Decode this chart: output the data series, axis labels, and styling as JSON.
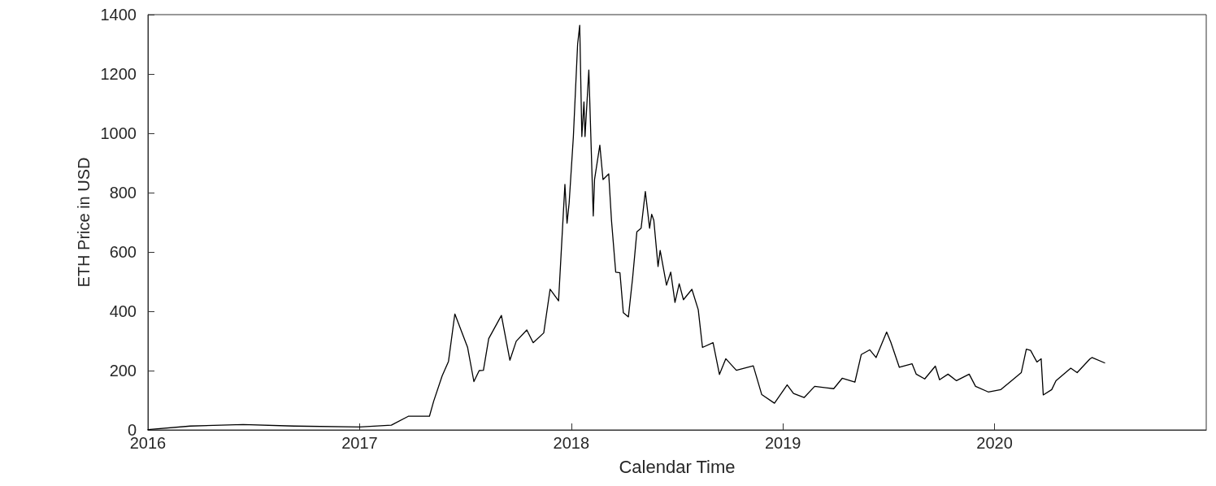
{
  "chart_data": {
    "type": "line",
    "xlabel": "Calendar Time",
    "ylabel": "ETH Price in USD",
    "xlim": [
      2016,
      2021
    ],
    "xticks": [
      2016,
      2017,
      2018,
      2019,
      2020
    ],
    "ylim": [
      0,
      1400
    ],
    "yticks": [
      0,
      200,
      400,
      600,
      800,
      1000,
      1200,
      1400
    ],
    "grid": false,
    "marker": "none",
    "line_style": "solid",
    "series": [
      {
        "color": "#000000",
        "x": [
          2016.0,
          2016.2,
          2016.45,
          2016.69,
          2017.0,
          2017.15,
          2017.23,
          2017.25,
          2017.33,
          2017.35,
          2017.39,
          2017.42,
          2017.45,
          2017.51,
          2017.54,
          2017.565,
          2017.585,
          2017.61,
          2017.67,
          2017.71,
          2017.74,
          2017.79,
          2017.82,
          2017.87,
          2017.9,
          2017.94,
          2017.96,
          2017.97,
          2017.98,
          2017.99,
          2018.01,
          2018.03,
          2018.04,
          2018.05,
          2018.06,
          2018.065,
          2018.083,
          2018.104,
          2018.11,
          2018.135,
          2018.15,
          2018.177,
          2018.19,
          2018.21,
          2018.23,
          2018.246,
          2018.27,
          2018.29,
          2018.31,
          2018.33,
          2018.35,
          2018.37,
          2018.38,
          2018.39,
          2018.41,
          2018.42,
          2018.45,
          2018.47,
          2018.49,
          2018.51,
          2018.53,
          2018.57,
          2018.6,
          2018.62,
          2018.67,
          2018.7,
          2018.73,
          2018.78,
          2018.86,
          2018.9,
          2018.96,
          2019.02,
          2019.05,
          2019.1,
          2019.15,
          2019.24,
          2019.28,
          2019.34,
          2019.37,
          2019.41,
          2019.44,
          2019.49,
          2019.51,
          2019.55,
          2019.61,
          2019.63,
          2019.67,
          2019.72,
          2019.74,
          2019.78,
          2019.82,
          2019.88,
          2019.91,
          2019.97,
          2020.03,
          2020.08,
          2020.126,
          2020.15,
          2020.17,
          2020.2,
          2020.22,
          2020.23,
          2020.27,
          2020.29,
          2020.36,
          2020.39,
          2020.45,
          2020.46,
          2020.52
        ],
        "values": [
          1,
          13,
          18,
          13,
          10,
          16,
          46,
          46,
          46,
          97,
          182,
          231,
          391,
          279,
          163,
          200,
          201,
          308,
          386,
          235,
          299,
          337,
          294,
          327,
          474,
          435,
          697,
          828,
          697,
          765,
          989,
          1300,
          1364,
          989,
          1106,
          989,
          1213,
          721,
          844,
          960,
          844,
          863,
          707,
          532,
          530,
          395,
          381,
          513,
          668,
          680,
          804,
          680,
          727,
          707,
          551,
          605,
          488,
          532,
          430,
          493,
          439,
          474,
          405,
          278,
          294,
          187,
          240,
          201,
          216,
          119,
          90,
          152,
          123,
          109,
          147,
          139,
          174,
          161,
          254,
          270,
          244,
          330,
          295,
          211,
          223,
          188,
          172,
          215,
          169,
          188,
          166,
          188,
          147,
          128,
          136,
          166,
          193,
          272,
          268,
          229,
          240,
          118,
          136,
          166,
          208,
          193,
          239,
          244,
          226
        ]
      }
    ]
  }
}
